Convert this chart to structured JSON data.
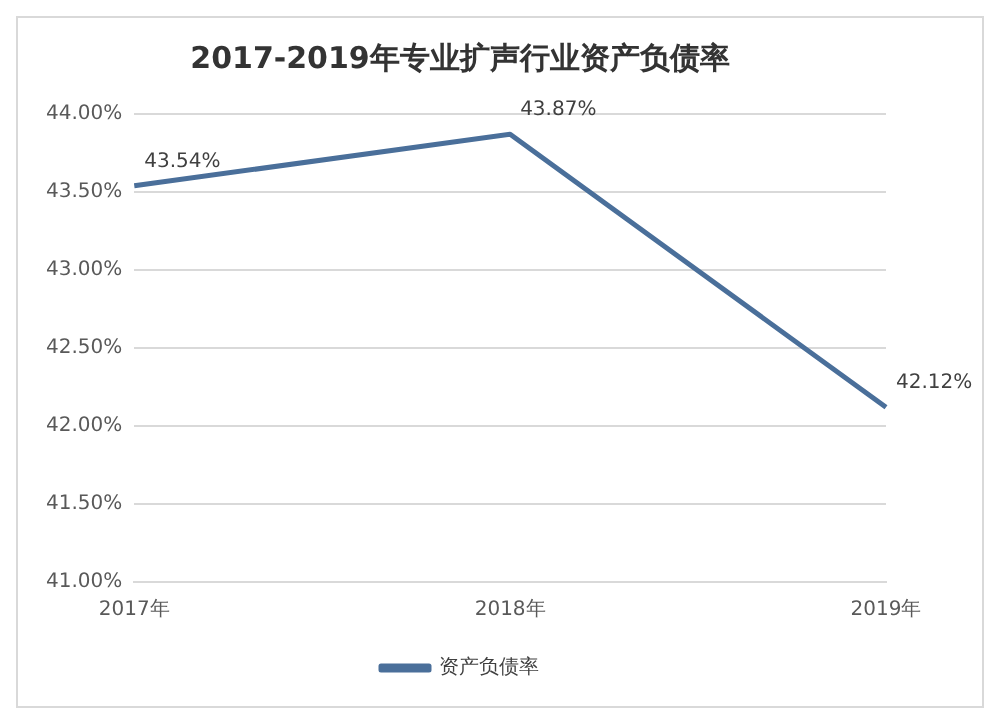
{
  "chart_data": {
    "type": "line",
    "title": "2017-2019年专业扩声行业资产负债率",
    "categories": [
      "2017年",
      "2018年",
      "2019年"
    ],
    "series": [
      {
        "name": "资产负债率",
        "color": "#4a6f9a",
        "values": [
          43.54,
          43.87,
          42.12
        ],
        "value_labels": [
          "43.54%",
          "43.87%",
          "42.12%"
        ]
      }
    ],
    "ylim": [
      41,
      44
    ],
    "yticks": [
      {
        "value": 41,
        "label": "41.00%"
      },
      {
        "value": 41.5,
        "label": "41.50%"
      },
      {
        "value": 42,
        "label": "42.00%"
      },
      {
        "value": 42.5,
        "label": "42.50%"
      },
      {
        "value": 43,
        "label": "43.00%"
      },
      {
        "value": 43.5,
        "label": "43.50%"
      },
      {
        "value": 44,
        "label": "44.00%"
      }
    ],
    "grid": "y",
    "legend": "bottom",
    "marker": "none",
    "line_style": "solid"
  }
}
